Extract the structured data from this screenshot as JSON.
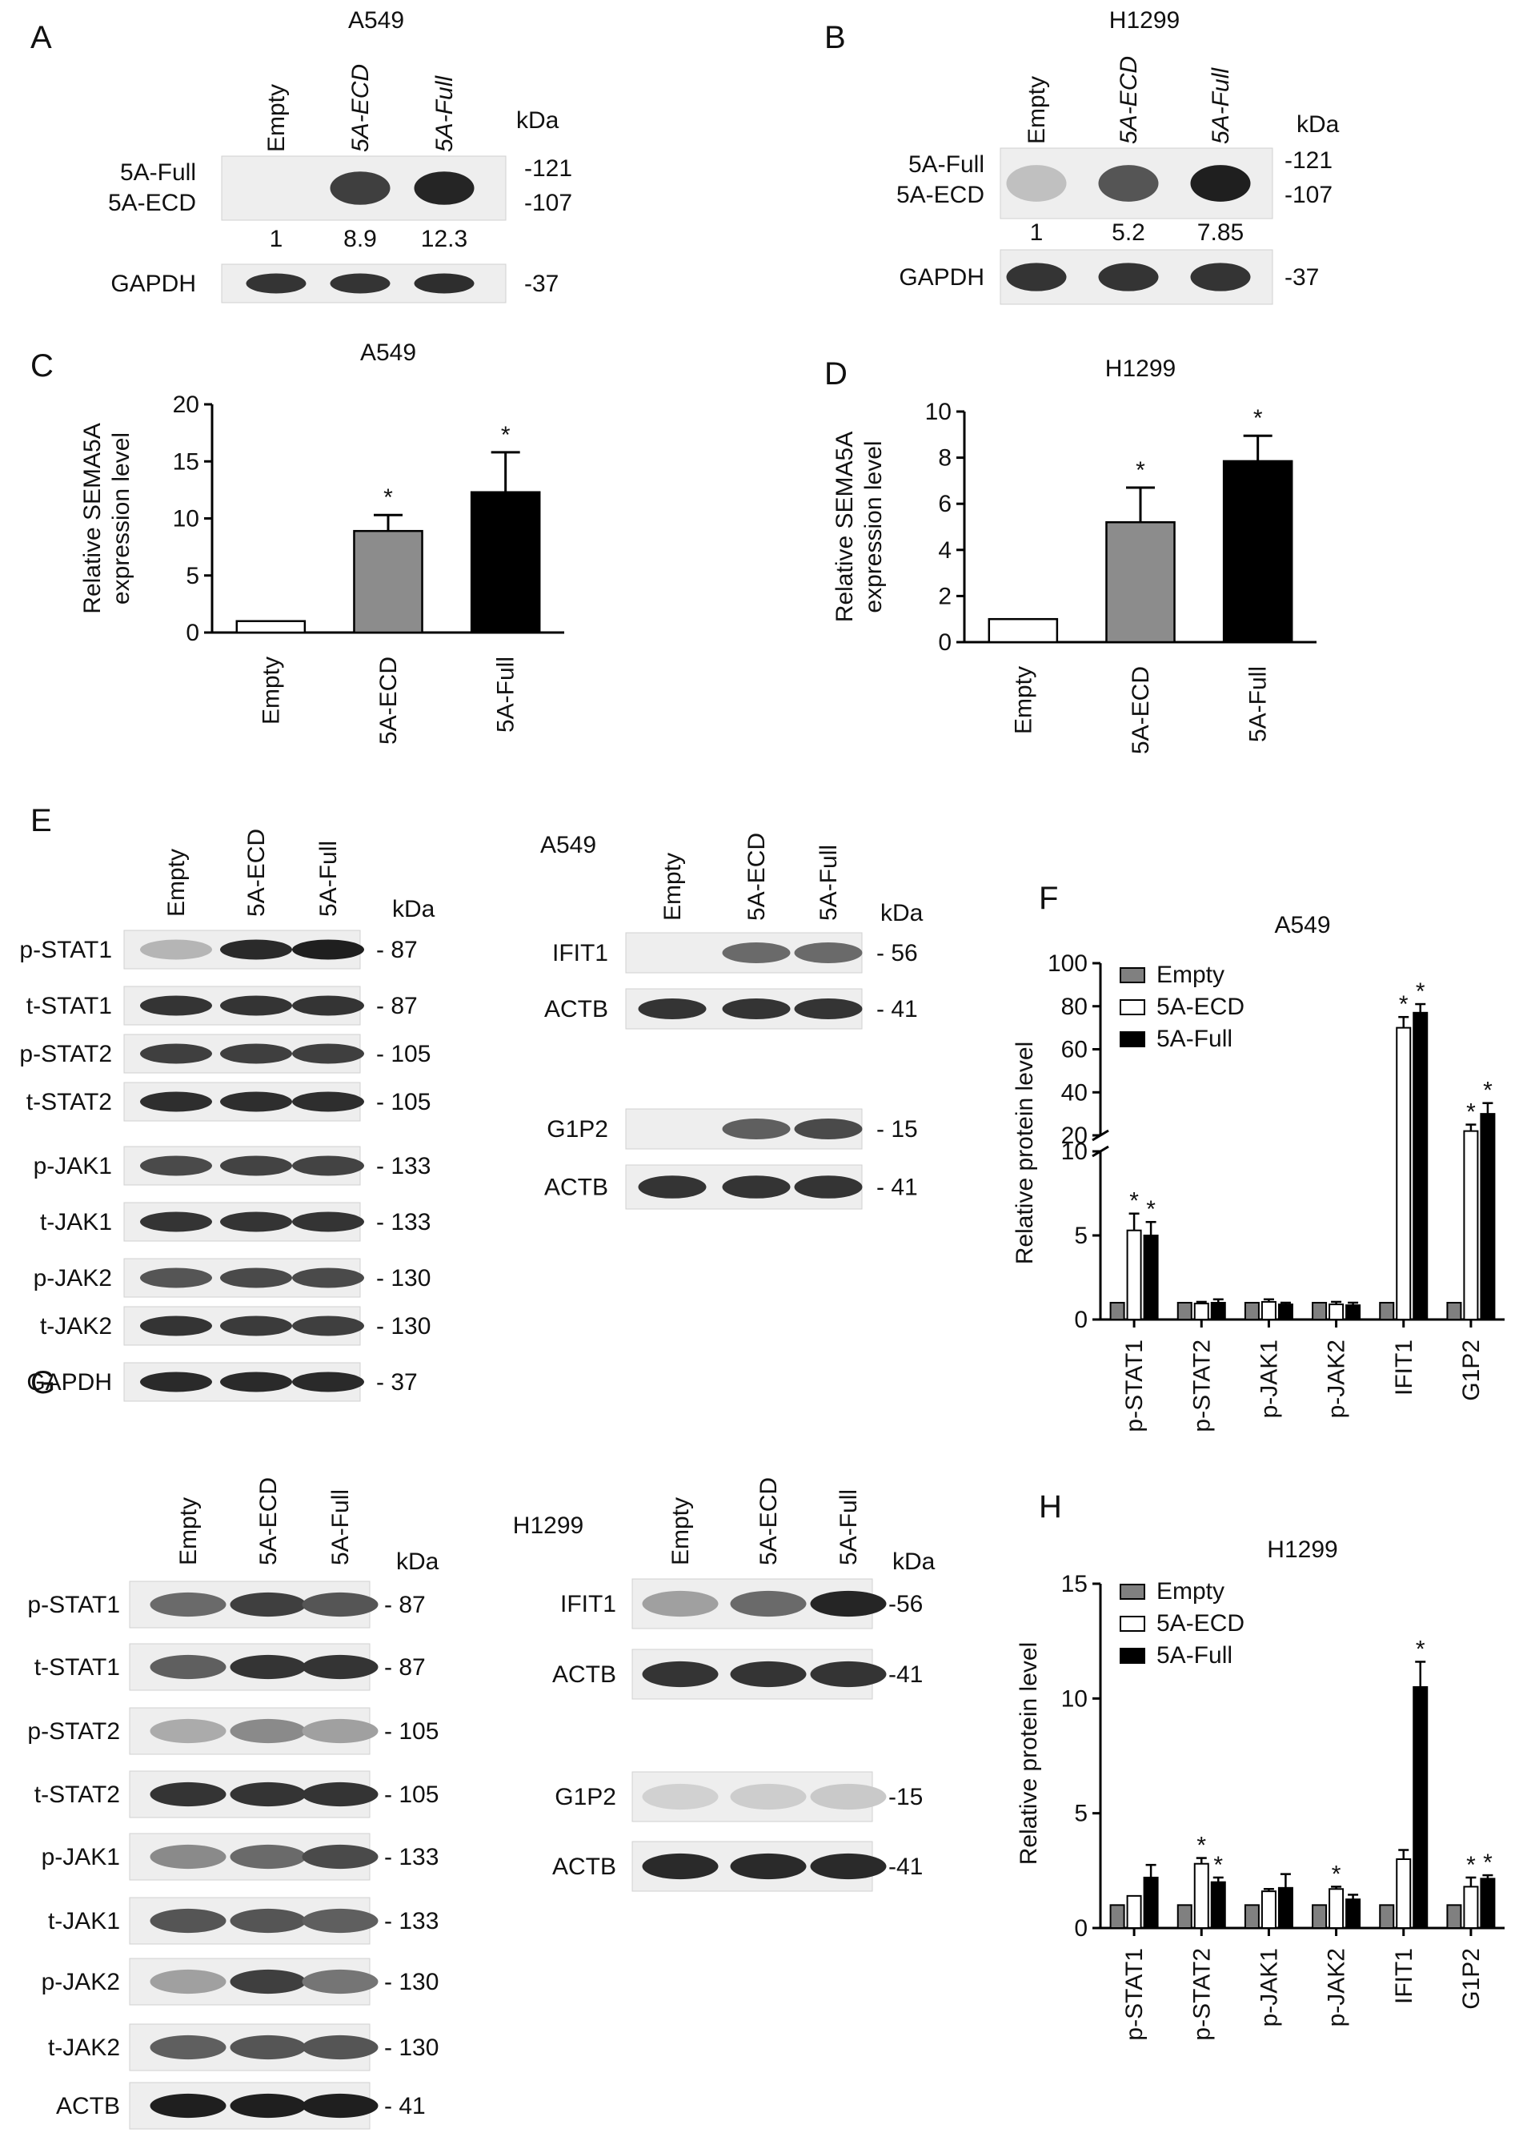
{
  "kda_label": "kDa",
  "panels": {
    "A": {
      "letter": "A",
      "cell_line": "A549",
      "lanes": [
        "Empty",
        "5A-ECD",
        "5A-Full"
      ],
      "rows": [
        {
          "label_top": "5A-Full",
          "label_bottom": "5A-ECD",
          "marker_top": "-121",
          "marker_bottom": "-107",
          "intensity": [
            0.0,
            0.8,
            0.92
          ]
        },
        {
          "label": "GAPDH",
          "marker": "-37",
          "intensity": [
            0.85,
            0.85,
            0.88
          ]
        }
      ],
      "quant": [
        "1",
        "8.9",
        "12.3"
      ]
    },
    "B": {
      "letter": "B",
      "cell_line": "H1299",
      "lanes": [
        "Empty",
        "5A-ECD",
        "5A-Full"
      ],
      "rows": [
        {
          "label_top": "5A-Full",
          "label_bottom": "5A-ECD",
          "marker_top": "-121",
          "marker_bottom": "-107",
          "intensity": [
            0.2,
            0.7,
            0.95
          ]
        },
        {
          "label": "GAPDH",
          "marker": "-37",
          "intensity": [
            0.85,
            0.85,
            0.85
          ]
        }
      ],
      "quant": [
        "1",
        "5.2",
        "7.85"
      ]
    },
    "E_left": {
      "letter": "E",
      "lanes": [
        "Empty",
        "5A-ECD",
        "5A-Full"
      ],
      "rows": [
        {
          "label": "p-STAT1",
          "marker": "- 87",
          "intensity": [
            0.25,
            0.9,
            0.95
          ]
        },
        {
          "label": "t-STAT1",
          "marker": "- 87",
          "intensity": [
            0.85,
            0.85,
            0.85
          ]
        },
        {
          "label": "p-STAT2",
          "marker": "- 105",
          "intensity": [
            0.8,
            0.8,
            0.8
          ]
        },
        {
          "label": "t-STAT2",
          "marker": "- 105",
          "intensity": [
            0.88,
            0.88,
            0.88
          ]
        },
        {
          "label": "p-JAK1",
          "marker": "- 133",
          "intensity": [
            0.75,
            0.78,
            0.78
          ]
        },
        {
          "label": "t-JAK1",
          "marker": "- 133",
          "intensity": [
            0.85,
            0.85,
            0.85
          ]
        },
        {
          "label": "p-JAK2",
          "marker": "- 130",
          "intensity": [
            0.7,
            0.75,
            0.75
          ]
        },
        {
          "label": "t-JAK2",
          "marker": "- 130",
          "intensity": [
            0.85,
            0.82,
            0.8
          ]
        },
        {
          "label": "GAPDH",
          "marker": "- 37",
          "intensity": [
            0.9,
            0.9,
            0.9
          ]
        }
      ]
    },
    "E_right": {
      "cell_line": "A549",
      "lanes": [
        "Empty",
        "5A-ECD",
        "5A-Full"
      ],
      "rows": [
        {
          "label": "IFIT1",
          "marker": "- 56",
          "intensity": [
            0.0,
            0.6,
            0.6
          ]
        },
        {
          "label": "ACTB",
          "marker": "- 41",
          "intensity": [
            0.85,
            0.85,
            0.85
          ]
        },
        {
          "label": "G1P2",
          "marker": "- 15",
          "intensity": [
            0.0,
            0.65,
            0.75
          ]
        },
        {
          "label": "ACTB",
          "marker": "- 41",
          "intensity": [
            0.85,
            0.85,
            0.85
          ]
        }
      ]
    },
    "G_left": {
      "letter": "G",
      "lanes": [
        "Empty",
        "5A-ECD",
        "5A-Full"
      ],
      "rows": [
        {
          "label": "p-STAT1",
          "marker": "- 87",
          "intensity": [
            0.6,
            0.8,
            0.7
          ]
        },
        {
          "label": "t-STAT1",
          "marker": "- 87",
          "intensity": [
            0.65,
            0.85,
            0.85
          ]
        },
        {
          "label": "p-STAT2",
          "marker": "- 105",
          "intensity": [
            0.3,
            0.45,
            0.35
          ]
        },
        {
          "label": "t-STAT2",
          "marker": "- 105",
          "intensity": [
            0.85,
            0.85,
            0.85
          ]
        },
        {
          "label": "p-JAK1",
          "marker": "- 133",
          "intensity": [
            0.45,
            0.6,
            0.75
          ]
        },
        {
          "label": "t-JAK1",
          "marker": "- 133",
          "intensity": [
            0.7,
            0.7,
            0.65
          ]
        },
        {
          "label": "p-JAK2",
          "marker": "- 130",
          "intensity": [
            0.35,
            0.8,
            0.55
          ]
        },
        {
          "label": "t-JAK2",
          "marker": "- 130",
          "intensity": [
            0.65,
            0.7,
            0.7
          ]
        },
        {
          "label": "ACTB",
          "marker": "- 41",
          "intensity": [
            0.95,
            0.95,
            0.95
          ]
        }
      ]
    },
    "G_right": {
      "cell_line": "H1299",
      "lanes": [
        "Empty",
        "5A-ECD",
        "5A-Full"
      ],
      "rows": [
        {
          "label": "IFIT1",
          "marker": "-56",
          "intensity": [
            0.35,
            0.6,
            0.92
          ]
        },
        {
          "label": "ACTB",
          "marker": "-41",
          "intensity": [
            0.85,
            0.85,
            0.85
          ]
        },
        {
          "label": "G1P2",
          "marker": "-15",
          "intensity": [
            0.12,
            0.14,
            0.16
          ]
        },
        {
          "label": "ACTB",
          "marker": "-41",
          "intensity": [
            0.9,
            0.9,
            0.9
          ]
        }
      ]
    }
  },
  "chart_data": [
    {
      "panel": "C",
      "type": "bar",
      "title": "A549",
      "ylabel": [
        "Relative SEMA5A",
        "expression level"
      ],
      "categories": [
        "Empty",
        "5A-ECD",
        "5A-Full"
      ],
      "values": [
        1,
        8.9,
        12.3
      ],
      "errors": [
        0,
        1.4,
        3.5
      ],
      "significance": [
        "",
        "*",
        "*"
      ],
      "colors": [
        "#ffffff",
        "#8c8c8c",
        "#000000"
      ],
      "ylim": [
        0,
        20
      ],
      "yticks": [
        0,
        5,
        10,
        15,
        20
      ]
    },
    {
      "panel": "D",
      "type": "bar",
      "title": "H1299",
      "ylabel": [
        "Relative SEMA5A",
        "expression level"
      ],
      "categories": [
        "Empty",
        "5A-ECD",
        "5A-Full"
      ],
      "values": [
        1,
        5.2,
        7.85
      ],
      "errors": [
        0,
        1.5,
        1.1
      ],
      "significance": [
        "",
        "*",
        "*"
      ],
      "colors": [
        "#ffffff",
        "#8c8c8c",
        "#000000"
      ],
      "ylim": [
        0,
        10
      ],
      "yticks": [
        0,
        2,
        4,
        6,
        8,
        10
      ]
    },
    {
      "panel": "F",
      "type": "bar",
      "title": "A549",
      "ylabel": "Relative protein level",
      "categories": [
        "p-STAT1",
        "p-STAT2",
        "p-JAK1",
        "p-JAK2",
        "IFIT1",
        "G1P2"
      ],
      "series": [
        {
          "name": "Empty",
          "color": "#808080",
          "values": [
            1,
            1,
            1,
            1,
            1,
            1
          ],
          "errors": [
            0,
            0,
            0,
            0,
            0,
            0
          ]
        },
        {
          "name": "5A-ECD",
          "color": "#ffffff",
          "values": [
            5.3,
            0.95,
            1.05,
            0.9,
            70,
            22
          ],
          "errors": [
            1.0,
            0.1,
            0.15,
            0.15,
            5,
            3
          ]
        },
        {
          "name": "5A-Full",
          "color": "#000000",
          "values": [
            5.0,
            1.0,
            0.9,
            0.85,
            77,
            30
          ],
          "errors": [
            0.8,
            0.2,
            0.1,
            0.15,
            4,
            5
          ]
        }
      ],
      "significance": [
        [
          "",
          "*",
          "*"
        ],
        [
          "",
          "",
          ""
        ],
        [
          "",
          "",
          ""
        ],
        [
          "",
          "",
          ""
        ],
        [
          "",
          "*",
          "*"
        ],
        [
          "",
          "*",
          "*"
        ]
      ],
      "broken_axis": true,
      "lower_range": [
        0,
        10
      ],
      "lower_ticks": [
        0,
        5,
        10
      ],
      "upper_range": [
        20,
        100
      ],
      "upper_ticks": [
        20,
        40,
        60,
        80,
        100
      ]
    },
    {
      "panel": "H",
      "type": "bar",
      "title": "H1299",
      "ylabel": "Relative protein level",
      "categories": [
        "p-STAT1",
        "p-STAT2",
        "p-JAK1",
        "p-JAK2",
        "IFIT1",
        "G1P2"
      ],
      "series": [
        {
          "name": "Empty",
          "color": "#808080",
          "values": [
            1,
            1,
            1,
            1,
            1,
            1
          ],
          "errors": [
            0,
            0,
            0,
            0,
            0,
            0
          ]
        },
        {
          "name": "5A-ECD",
          "color": "#ffffff",
          "values": [
            1.4,
            2.8,
            1.6,
            1.7,
            3.0,
            1.8
          ],
          "errors": [
            0,
            0.25,
            0.1,
            0.1,
            0.4,
            0.4
          ]
        },
        {
          "name": "5A-Full",
          "color": "#000000",
          "values": [
            2.2,
            2.0,
            1.75,
            1.25,
            10.5,
            2.15
          ],
          "errors": [
            0.55,
            0.2,
            0.6,
            0.2,
            1.1,
            0.15
          ]
        }
      ],
      "significance": [
        [
          "",
          "",
          ""
        ],
        [
          "",
          "*",
          "*"
        ],
        [
          "",
          "",
          ""
        ],
        [
          "",
          "*",
          ""
        ],
        [
          "",
          "",
          "*"
        ],
        [
          "",
          "*",
          "*"
        ]
      ],
      "ylim": [
        0,
        15
      ],
      "yticks": [
        0,
        5,
        10,
        15
      ]
    }
  ]
}
